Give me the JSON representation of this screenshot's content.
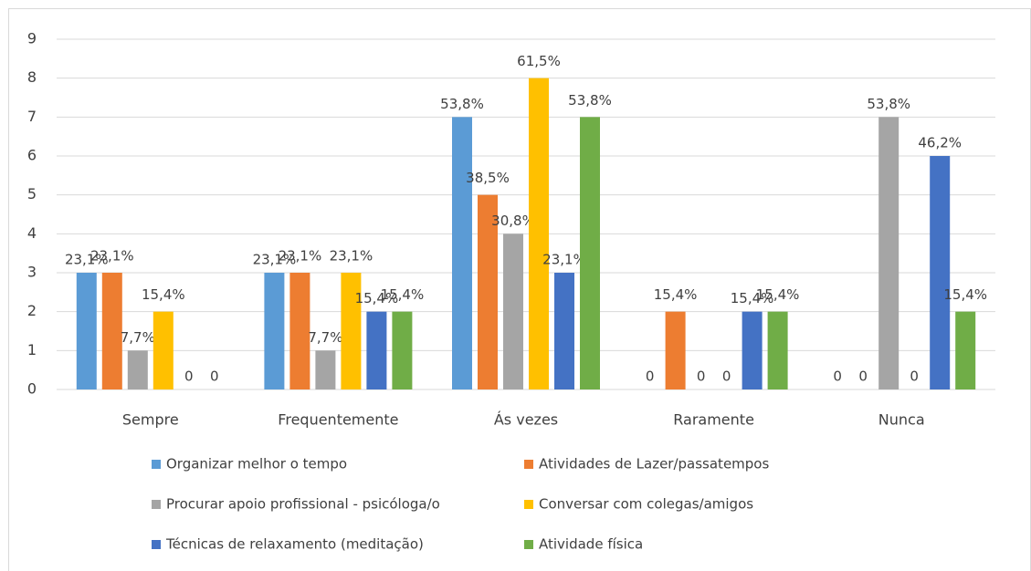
{
  "chart_data": {
    "type": "bar",
    "categories": [
      "Sempre",
      "Frequentemente",
      "Ás vezes",
      "Raramente",
      "Nunca"
    ],
    "series": [
      {
        "name": "Organizar melhor o tempo",
        "color": "#5b9bd5",
        "values": [
          3,
          3,
          7,
          0,
          0
        ],
        "percent_labels": [
          "23,1%",
          "23,1%",
          "53,8%",
          "0",
          "0"
        ]
      },
      {
        "name": "Atividades de Lazer/passatempos",
        "color": "#ed7d31",
        "values": [
          3,
          3,
          5,
          2,
          0
        ],
        "percent_labels": [
          "23,1%",
          "23,1%",
          "38,5%",
          "15,4%",
          "0"
        ]
      },
      {
        "name": "Procurar apoio profissional - psicóloga/o",
        "color": "#a5a5a5",
        "values": [
          1,
          1,
          4,
          0,
          7
        ],
        "percent_labels": [
          "7,7%",
          "7,7%",
          "30,8%",
          "0",
          "53,8%"
        ]
      },
      {
        "name": "Conversar com colegas/amigos",
        "color": "#ffc000",
        "values": [
          2,
          3,
          8,
          0,
          0
        ],
        "percent_labels": [
          "15,4%",
          "23,1%",
          "61,5%",
          "0",
          "0"
        ]
      },
      {
        "name": "Técnicas de relaxamento (meditação)",
        "color": "#4472c4",
        "values": [
          0,
          2,
          3,
          2,
          6
        ],
        "percent_labels": [
          "0",
          "15,4%",
          "23,1%",
          "15,4%",
          "46,2%"
        ]
      },
      {
        "name": "Atividade física",
        "color": "#70ad47",
        "values": [
          0,
          2,
          7,
          2,
          2
        ],
        "percent_labels": [
          "0",
          "15,4%",
          "53,8%",
          "15,4%",
          "15,4%"
        ]
      }
    ],
    "ylim": [
      0,
      9
    ],
    "yticks": [
      0,
      1,
      2,
      3,
      4,
      5,
      6,
      7,
      8,
      9
    ],
    "grid": true
  }
}
